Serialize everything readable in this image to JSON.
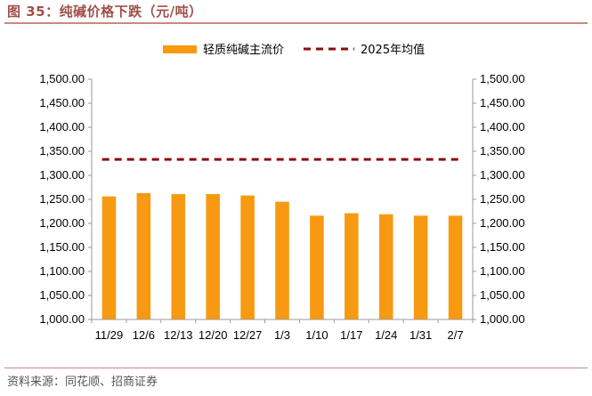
{
  "header": {
    "title": "图 35：纯碱价格下跌（元/吨）"
  },
  "footer": {
    "source": "资料来源：同花顺、招商证券"
  },
  "colors": {
    "bar": "#f79a11",
    "avg_line": "#8b0c0c",
    "axis": "#9a9a9a",
    "title": "#a0504a"
  },
  "chart_data": {
    "type": "bar",
    "title": "纯碱价格下跌（元/吨）",
    "categories": [
      "11/29",
      "12/6",
      "12/13",
      "12/20",
      "12/27",
      "1/3",
      "1/10",
      "1/17",
      "1/24",
      "1/31",
      "2/7"
    ],
    "series": [
      {
        "name": "轻质纯碱主流价",
        "type": "bar",
        "values": [
          1256,
          1263,
          1261,
          1261,
          1258,
          1245,
          1216,
          1221,
          1219,
          1216,
          1216
        ]
      },
      {
        "name": "2025年均值",
        "type": "line-dashed",
        "value": 1333
      }
    ],
    "ylim": [
      1000,
      1500
    ],
    "yticks": [
      "1,000.00",
      "1,050.00",
      "1,100.00",
      "1,150.00",
      "1,200.00",
      "1,250.00",
      "1,300.00",
      "1,350.00",
      "1,400.00",
      "1,450.00",
      "1,500.00"
    ],
    "legend_position": "top",
    "grid": false,
    "dual_y_axis": true
  }
}
